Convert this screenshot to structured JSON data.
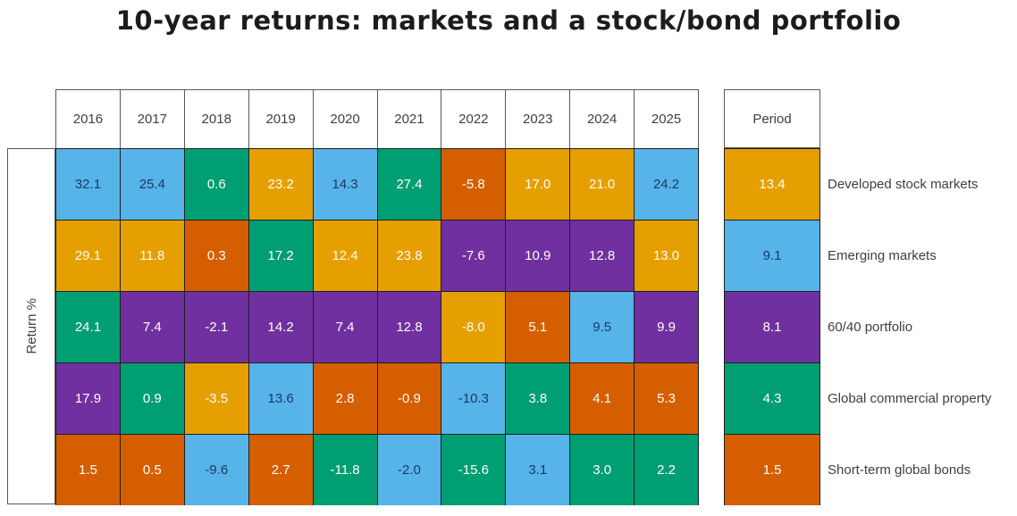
{
  "chart_data": {
    "type": "heatmap",
    "title": "10-year returns: markets and a stock/bond portfolio",
    "ylabel": "Return %",
    "period_column_header": "Period",
    "columns": [
      "2016",
      "2017",
      "2018",
      "2019",
      "2020",
      "2021",
      "2022",
      "2023",
      "2024",
      "2025"
    ],
    "legend_position": "right",
    "colors": {
      "developed": "#E69F00",
      "emerging": "#56B4E9",
      "portfolio_60_40": "#7030A0",
      "property": "#009E73",
      "bonds": "#D55E00"
    },
    "cell_text_dark": "#1F3864",
    "cell_text_light": "#FFFDF6",
    "dark_text_assets": [
      "emerging"
    ],
    "assets": [
      {
        "name": "Developed stock markets",
        "key": "developed",
        "hex": "#E69F00"
      },
      {
        "name": "Emerging markets",
        "key": "emerging",
        "hex": "#56B4E9"
      },
      {
        "name": "60/40 portfolio",
        "key": "portfolio_60_40",
        "hex": "#7030A0"
      },
      {
        "name": "Global commercial property",
        "key": "property",
        "hex": "#009E73"
      },
      {
        "name": "Short-term global bonds",
        "key": "bonds",
        "hex": "#D55E00"
      }
    ],
    "rows": [
      {
        "rank": 1,
        "cells": [
          {
            "value": "32.1",
            "asset": "emerging"
          },
          {
            "value": "25.4",
            "asset": "emerging"
          },
          {
            "value": "0.6",
            "asset": "property"
          },
          {
            "value": "23.2",
            "asset": "developed"
          },
          {
            "value": "14.3",
            "asset": "emerging"
          },
          {
            "value": "27.4",
            "asset": "property"
          },
          {
            "value": "-5.8",
            "asset": "bonds"
          },
          {
            "value": "17.0",
            "asset": "developed"
          },
          {
            "value": "21.0",
            "asset": "developed"
          },
          {
            "value": "24.2",
            "asset": "emerging"
          }
        ],
        "period": {
          "value": "13.4",
          "asset": "developed"
        },
        "legend_label": "Developed stock markets"
      },
      {
        "rank": 2,
        "cells": [
          {
            "value": "29.1",
            "asset": "developed"
          },
          {
            "value": "11.8",
            "asset": "developed"
          },
          {
            "value": "0.3",
            "asset": "bonds"
          },
          {
            "value": "17.2",
            "asset": "property"
          },
          {
            "value": "12.4",
            "asset": "developed"
          },
          {
            "value": "23.8",
            "asset": "developed"
          },
          {
            "value": "-7.6",
            "asset": "portfolio_60_40"
          },
          {
            "value": "10.9",
            "asset": "portfolio_60_40"
          },
          {
            "value": "12.8",
            "asset": "portfolio_60_40"
          },
          {
            "value": "13.0",
            "asset": "developed"
          }
        ],
        "period": {
          "value": "9.1",
          "asset": "emerging"
        },
        "legend_label": "Emerging markets"
      },
      {
        "rank": 3,
        "cells": [
          {
            "value": "24.1",
            "asset": "property"
          },
          {
            "value": "7.4",
            "asset": "portfolio_60_40"
          },
          {
            "value": "-2.1",
            "asset": "portfolio_60_40"
          },
          {
            "value": "14.2",
            "asset": "portfolio_60_40"
          },
          {
            "value": "7.4",
            "asset": "portfolio_60_40"
          },
          {
            "value": "12.8",
            "asset": "portfolio_60_40"
          },
          {
            "value": "-8.0",
            "asset": "developed"
          },
          {
            "value": "5.1",
            "asset": "bonds"
          },
          {
            "value": "9.5",
            "asset": "emerging"
          },
          {
            "value": "9.9",
            "asset": "portfolio_60_40"
          }
        ],
        "period": {
          "value": "8.1",
          "asset": "portfolio_60_40"
        },
        "legend_label": "60/40 portfolio"
      },
      {
        "rank": 4,
        "cells": [
          {
            "value": "17.9",
            "asset": "portfolio_60_40"
          },
          {
            "value": "0.9",
            "asset": "property"
          },
          {
            "value": "-3.5",
            "asset": "developed"
          },
          {
            "value": "13.6",
            "asset": "emerging"
          },
          {
            "value": "2.8",
            "asset": "bonds"
          },
          {
            "value": "-0.9",
            "asset": "bonds"
          },
          {
            "value": "-10.3",
            "asset": "emerging"
          },
          {
            "value": "3.8",
            "asset": "property"
          },
          {
            "value": "4.1",
            "asset": "bonds"
          },
          {
            "value": "5.3",
            "asset": "bonds"
          }
        ],
        "period": {
          "value": "4.3",
          "asset": "property"
        },
        "legend_label": "Global commercial property"
      },
      {
        "rank": 5,
        "cells": [
          {
            "value": "1.5",
            "asset": "bonds"
          },
          {
            "value": "0.5",
            "asset": "bonds"
          },
          {
            "value": "-9.6",
            "asset": "emerging"
          },
          {
            "value": "2.7",
            "asset": "bonds"
          },
          {
            "value": "-11.8",
            "asset": "property"
          },
          {
            "value": "-2.0",
            "asset": "emerging"
          },
          {
            "value": "-15.6",
            "asset": "property"
          },
          {
            "value": "3.1",
            "asset": "emerging"
          },
          {
            "value": "3.0",
            "asset": "property"
          },
          {
            "value": "2.2",
            "asset": "property"
          }
        ],
        "period": {
          "value": "1.5",
          "asset": "bonds"
        },
        "legend_label": "Short-term global bonds"
      }
    ]
  }
}
